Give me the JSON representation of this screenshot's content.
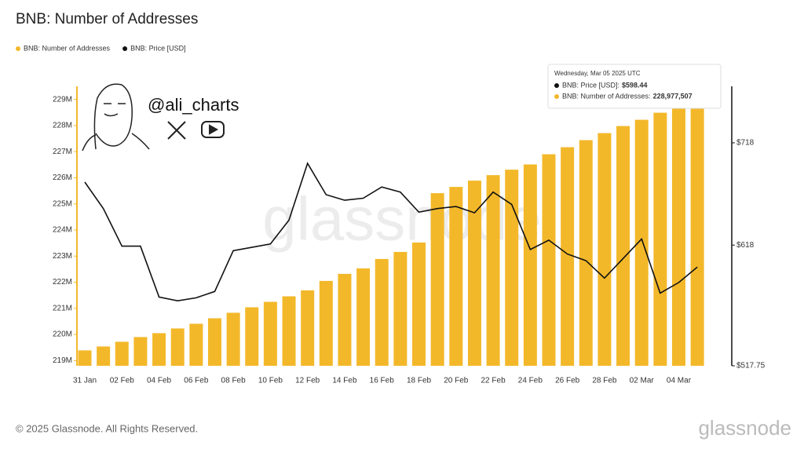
{
  "chart_data": {
    "type": "bar",
    "title": "BNB: Number of Addresses",
    "watermark": "glassnode",
    "handle": "@ali_charts",
    "footer": "© 2025 Glassnode. All Rights Reserved.",
    "brand": "glassnode",
    "tooltip": {
      "date": "Wednesday, Mar 05 2025 UTC",
      "items": [
        {
          "label": "BNB: Price [USD]:",
          "value": "$598.44"
        },
        {
          "label": "BNB: Number of Addresses:",
          "value": "228,977,507"
        }
      ]
    },
    "categories": [
      "31 Jan",
      null,
      "02 Feb",
      null,
      "04 Feb",
      null,
      "06 Feb",
      null,
      "08 Feb",
      null,
      "10 Feb",
      null,
      "12 Feb",
      null,
      "14 Feb",
      null,
      "16 Feb",
      null,
      "18 Feb",
      null,
      "20 Feb",
      null,
      "22 Feb",
      null,
      "24 Feb",
      null,
      "26 Feb",
      null,
      "28 Feb",
      null,
      "02 Mar",
      null,
      "04 Mar",
      null
    ],
    "series": [
      {
        "name": "BNB: Number of Addresses",
        "type": "bar",
        "color": "#f3b82a",
        "values": [
          219.39,
          219.54,
          219.72,
          219.9,
          220.05,
          220.23,
          220.41,
          220.62,
          220.83,
          221.04,
          221.25,
          221.46,
          221.69,
          222.05,
          222.32,
          222.53,
          222.89,
          223.16,
          223.52,
          225.41,
          225.65,
          225.89,
          226.1,
          226.31,
          226.51,
          226.9,
          227.17,
          227.44,
          227.71,
          227.98,
          228.22,
          228.49,
          228.76,
          228.977507
        ]
      },
      {
        "name": "BNB: Price [USD]",
        "type": "line",
        "axis": "y2",
        "color": "#111111",
        "values": [
          677.8,
          652,
          617,
          617,
          572.7,
          569.5,
          572,
          577.4,
          613,
          616,
          619,
          641,
          696.7,
          665.4,
          660,
          662,
          673,
          668,
          648.6,
          652,
          654,
          648,
          668,
          656,
          614,
          622.5,
          610,
          604,
          588.8,
          606,
          623.6,
          576,
          585,
          598.44
        ]
      }
    ],
    "ylim": [
      218.8,
      229.5
    ],
    "yticks": [
      {
        "value": 219,
        "label": "219M"
      },
      {
        "value": 220,
        "label": "220M"
      },
      {
        "value": 221,
        "label": "221M"
      },
      {
        "value": 222,
        "label": "222M"
      },
      {
        "value": 223,
        "label": "223M"
      },
      {
        "value": 224,
        "label": "224M"
      },
      {
        "value": 225,
        "label": "225M"
      },
      {
        "value": 226,
        "label": "226M"
      },
      {
        "value": 227,
        "label": "227M"
      },
      {
        "value": 228,
        "label": "228M"
      },
      {
        "value": 229,
        "label": "229M"
      }
    ],
    "y2lim": [
      517.75,
      780
    ],
    "y2scale": "log",
    "y2ticks": [
      {
        "value": 517.75,
        "label": "$517.75"
      },
      {
        "value": 618,
        "label": "$618"
      },
      {
        "value": 718,
        "label": "$718"
      }
    ]
  }
}
